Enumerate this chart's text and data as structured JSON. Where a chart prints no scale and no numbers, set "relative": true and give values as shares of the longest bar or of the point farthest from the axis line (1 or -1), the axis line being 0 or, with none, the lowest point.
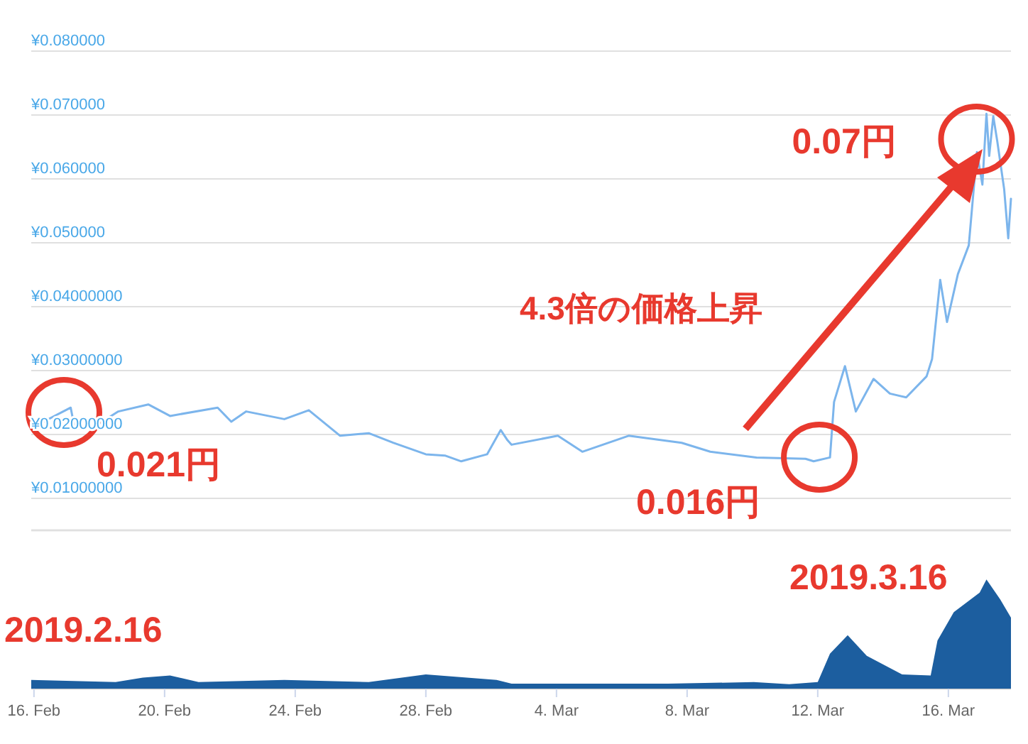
{
  "chart_data": [
    {
      "type": "line",
      "xlim": [
        "2019-02-15T22:00",
        "2019-03-17T22:00"
      ],
      "ylim": [
        0.005,
        0.08
      ],
      "yticks": [
        {
          "value": 0.01,
          "label": "¥0.01000000"
        },
        {
          "value": 0.02,
          "label": "¥0.02000000"
        },
        {
          "value": 0.03,
          "label": "¥0.03000000"
        },
        {
          "value": 0.04,
          "label": "¥0.04000000"
        },
        {
          "value": 0.05,
          "label": "¥0.050000"
        },
        {
          "value": 0.06,
          "label": "¥0.060000"
        },
        {
          "value": 0.07,
          "label": "¥0.070000"
        },
        {
          "value": 0.08,
          "label": "¥0.080000"
        }
      ],
      "tick_labels": "y",
      "grid": "y",
      "x": [
        "2019-02-15T22:00",
        "2019-02-17T03:00",
        "2019-02-17T06:00",
        "2019-02-17T21:00",
        "2019-02-18T14:00",
        "2019-02-19T12:00",
        "2019-02-20T04:00",
        "2019-02-21T15:00",
        "2019-02-22T01:00",
        "2019-02-22T12:00",
        "2019-02-23T16:00",
        "2019-02-24T10:00",
        "2019-02-25T09:00",
        "2019-02-26T06:00",
        "2019-02-27T00:00",
        "2019-02-28T00:00",
        "2019-02-28T14:00",
        "2019-03-01T02:00",
        "2019-03-01T21:00",
        "2019-03-02T07:00",
        "2019-03-02T12:00",
        "2019-03-02T15:00",
        "2019-03-04T01:00",
        "2019-03-04T19:00",
        "2019-03-06T05:00",
        "2019-03-07T20:00",
        "2019-03-08T17:00",
        "2019-03-10T03:00",
        "2019-03-11T15:00",
        "2019-03-11T21:00",
        "2019-03-12T09:00",
        "2019-03-12T12:00",
        "2019-03-12T20:00",
        "2019-03-13T04:00",
        "2019-03-13T17:00",
        "2019-03-14T05:00",
        "2019-03-14T17:00",
        "2019-03-15T08:00",
        "2019-03-15T12:00",
        "2019-03-15T18:00",
        "2019-03-15T23:00",
        "2019-03-16T07:00",
        "2019-03-16T15:00",
        "2019-03-16T21:00",
        "2019-03-17T01:00",
        "2019-03-17T04:00",
        "2019-03-17T06:00",
        "2019-03-17T09:00",
        "2019-03-17T12:00",
        "2019-03-17T17:00",
        "2019-03-17T20:00",
        "2019-03-17T22:00"
      ],
      "series": [
        {
          "color": "#7cb5ec",
          "values": [
            0.021,
            0.0242,
            0.0209,
            0.0213,
            0.0236,
            0.0247,
            0.0229,
            0.0242,
            0.022,
            0.0236,
            0.0224,
            0.0238,
            0.0198,
            0.0202,
            0.0187,
            0.0169,
            0.0167,
            0.0158,
            0.0169,
            0.0207,
            0.0191,
            0.0184,
            0.0198,
            0.0173,
            0.0198,
            0.0187,
            0.0173,
            0.0164,
            0.0162,
            0.0158,
            0.0164,
            0.0251,
            0.0307,
            0.0236,
            0.0287,
            0.0264,
            0.0258,
            0.0291,
            0.0318,
            0.0442,
            0.0376,
            0.0451,
            0.0496,
            0.0642,
            0.0591,
            0.0702,
            0.0636,
            0.0698,
            0.0658,
            0.0584,
            0.0507,
            0.0569
          ]
        }
      ],
      "annotations": [
        {
          "text": "0.021円",
          "x": "2019-02-15T22:00",
          "y": 0.021
        },
        {
          "text": "0.016円",
          "x": "2019-03-11T21:00",
          "y": 0.016
        },
        {
          "text": "0.07円",
          "x": "2019-03-17T04:00",
          "y": 0.07
        },
        "4.3倍の価格上昇"
      ]
    },
    {
      "type": "area",
      "relative": true,
      "xlim": [
        "2019-02-15T22:00",
        "2019-03-17T22:00"
      ],
      "xticks": [
        {
          "value": "2019-02-16",
          "label": "16. Feb"
        },
        {
          "value": "2019-02-20",
          "label": "20. Feb"
        },
        {
          "value": "2019-02-24",
          "label": "24. Feb"
        },
        {
          "value": "2019-02-28",
          "label": "28. Feb"
        },
        {
          "value": "2019-03-04",
          "label": "4. Mar"
        },
        {
          "value": "2019-03-08",
          "label": "8. Mar"
        },
        {
          "value": "2019-03-12",
          "label": "12. Mar"
        },
        {
          "value": "2019-03-16",
          "label": "16. Mar"
        }
      ],
      "tick_labels": "x",
      "x": [
        "2019-02-15T22:00",
        "2019-02-18T12:00",
        "2019-02-19T08:00",
        "2019-02-20T04:00",
        "2019-02-21T01:00",
        "2019-02-23T16:00",
        "2019-02-26T06:00",
        "2019-02-28T00:00",
        "2019-03-02T04:00",
        "2019-03-02T15:00",
        "2019-03-07T10:00",
        "2019-03-10T01:00",
        "2019-03-11T03:00",
        "2019-03-12T00:00",
        "2019-03-12T09:00",
        "2019-03-12T22:00",
        "2019-03-13T12:00",
        "2019-03-14T14:00",
        "2019-03-15T11:00",
        "2019-03-15T16:00",
        "2019-03-16T04:00",
        "2019-03-16T23:00",
        "2019-03-17T04:00",
        "2019-03-17T14:00",
        "2019-03-17T22:00"
      ],
      "series": [
        {
          "color": "#1c5e9f",
          "values": [
            0.08,
            0.06,
            0.1,
            0.12,
            0.06,
            0.08,
            0.06,
            0.13,
            0.08,
            0.045,
            0.045,
            0.06,
            0.04,
            0.06,
            0.32,
            0.49,
            0.3,
            0.13,
            0.12,
            0.44,
            0.7,
            0.88,
            1.0,
            0.82,
            0.65
          ]
        }
      ],
      "annotations": [
        "2019.2.16",
        "2019.3.16"
      ]
    }
  ]
}
